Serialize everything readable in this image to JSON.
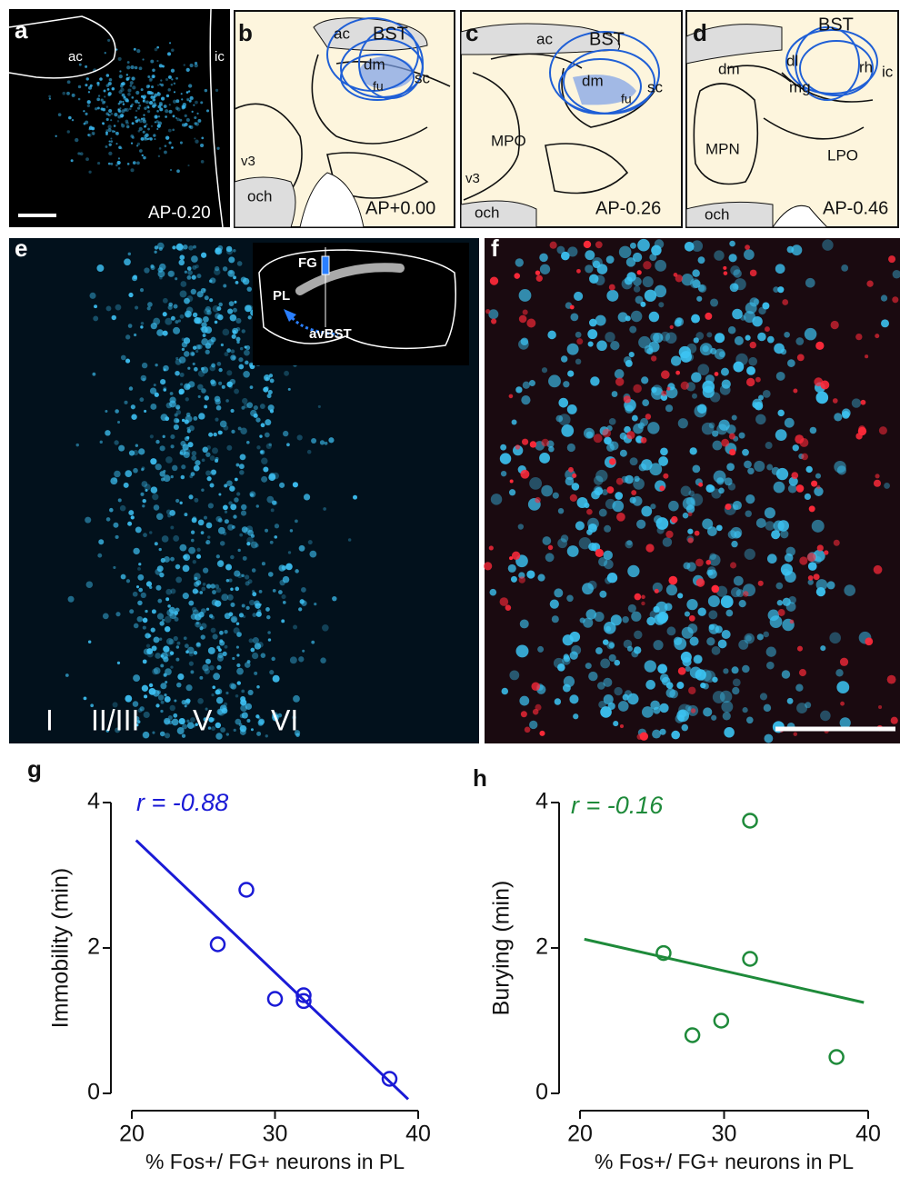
{
  "panels": {
    "a": {
      "label": "a",
      "regions": [
        "ac",
        "ic"
      ],
      "coordinate": "AP-0.20"
    },
    "b": {
      "label": "b",
      "regions": [
        "ac",
        "BST",
        "dm",
        "fu",
        "sc",
        "v3",
        "och"
      ],
      "coordinate": "AP+0.00"
    },
    "c": {
      "label": "c",
      "regions": [
        "ac",
        "BST",
        "dm",
        "fu",
        "sc",
        "MPO",
        "v3",
        "och"
      ],
      "coordinate": "AP-0.26"
    },
    "d": {
      "label": "d",
      "regions": [
        "BST",
        "dm",
        "dl",
        "rh",
        "mg",
        "ic",
        "MPN",
        "LPO",
        "och"
      ],
      "coordinate": "AP-0.46"
    },
    "e": {
      "label": "e",
      "inset": [
        "FG",
        "PL",
        "avBST"
      ],
      "layers": [
        "I",
        "II/III",
        "V",
        "VI"
      ]
    },
    "f": {
      "label": "f"
    }
  },
  "chart_data": [
    {
      "type": "scatter",
      "panel_label": "g",
      "annotation": "r = -0.88",
      "x_label": "% Fos+/ FG+ neurons in PL",
      "y_label": "Immobility (min)",
      "x": [
        26,
        28,
        30,
        32,
        32,
        38
      ],
      "values": [
        2.05,
        2.8,
        1.3,
        1.35,
        1.27,
        0.2
      ],
      "color": "#1a1ad6",
      "trendline": {
        "x": [
          20.3,
          39.3
        ],
        "values": [
          3.48,
          -0.08
        ]
      },
      "xlim": [
        20,
        40
      ],
      "xticks": [
        20,
        30,
        40
      ],
      "ylim": [
        0,
        4
      ],
      "yticks": [
        0,
        2,
        4
      ]
    },
    {
      "type": "scatter",
      "panel_label": "h",
      "annotation": "r = -0.16",
      "x_label": "% Fos+/ FG+ neurons in PL",
      "y_label": "Burying (min)",
      "x": [
        25.8,
        27.8,
        29.8,
        31.8,
        31.8,
        37.8
      ],
      "values": [
        1.93,
        0.8,
        1.0,
        3.75,
        1.85,
        0.5
      ],
      "color": "#1e8a3a",
      "trendline": {
        "x": [
          20.3,
          39.7
        ],
        "values": [
          2.12,
          1.25
        ]
      },
      "xlim": [
        20,
        40
      ],
      "xticks": [
        20,
        30,
        40
      ],
      "ylim": [
        0,
        4
      ],
      "yticks": [
        0,
        2,
        4
      ]
    }
  ]
}
